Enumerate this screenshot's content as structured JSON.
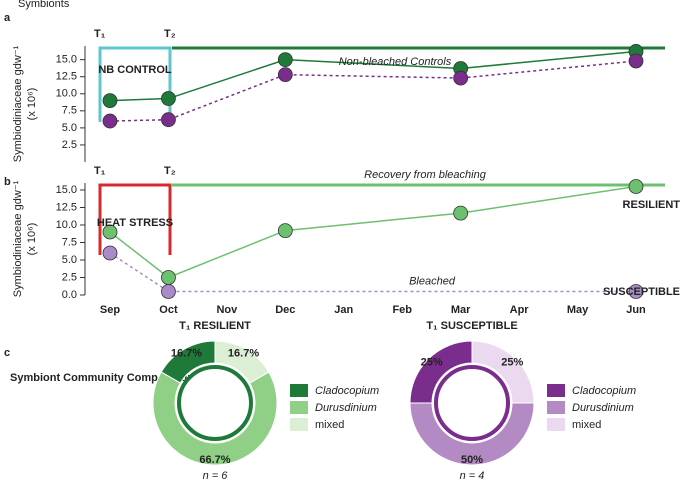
{
  "chart_data": [
    {
      "type": "line",
      "panel": "a",
      "ylim": [
        0,
        17
      ],
      "yticks": [
        {
          "value": 2.5,
          "label": "2.5"
        },
        {
          "value": 5,
          "label": "5.0"
        },
        {
          "value": 7.5,
          "label": "7.5"
        },
        {
          "value": 10,
          "label": "10.0"
        },
        {
          "value": 12.5,
          "label": "12.5"
        },
        {
          "value": 15,
          "label": "15.0"
        }
      ],
      "ylabel": "Symbiodiniaceae gdw⁻¹",
      "ylabel_unit": "(x 10⁶)",
      "series": [
        {
          "color": "#1f7a3a",
          "dashed": false,
          "x": [
            "Sep",
            "Oct",
            "Dec",
            "Mar",
            "Jun"
          ],
          "values": [
            9,
            9.3,
            15,
            13.7,
            16.2
          ]
        },
        {
          "color": "#7a2d8c",
          "dashed": true,
          "x": [
            "Sep",
            "Oct",
            "Dec",
            "Mar",
            "Jun"
          ],
          "values": [
            6,
            6.2,
            12.8,
            12.3,
            14.8
          ]
        }
      ],
      "annotations": {
        "symbionts": "Symbionts",
        "t1": "T₁",
        "t2": "T₂",
        "control": "NB CONTROL",
        "line": "Non-bleached Controls"
      }
    },
    {
      "type": "line",
      "panel": "b",
      "ylim": [
        0,
        16
      ],
      "categories": [
        "Sep",
        "Oct",
        "Nov",
        "Dec",
        "Jan",
        "Feb",
        "Mar",
        "Apr",
        "May",
        "Jun"
      ],
      "yticks": [
        {
          "value": 0,
          "label": "0.0"
        },
        {
          "value": 2.5,
          "label": "2.5"
        },
        {
          "value": 5,
          "label": "5.0"
        },
        {
          "value": 7.5,
          "label": "7.5"
        },
        {
          "value": 10,
          "label": "10.0"
        },
        {
          "value": 12.5,
          "label": "12.5"
        },
        {
          "value": 15,
          "label": "15.0"
        }
      ],
      "ylabel": "Symbiodiniaceae gdw⁻¹",
      "ylabel_unit": "(x 10⁶)",
      "series": [
        {
          "name": "RESILIENT",
          "color": "#6cc070",
          "dashed": false,
          "x": [
            "Sep",
            "Oct",
            "Dec",
            "Mar",
            "Jun"
          ],
          "values": [
            9,
            2.5,
            9.2,
            11.7,
            15.5
          ]
        },
        {
          "name": "SUSCEPTIBLE",
          "color": "#a98bc9",
          "dashed": true,
          "x": [
            "Sep",
            "Oct",
            "Jun"
          ],
          "values": [
            6,
            0.5,
            0.5
          ]
        }
      ],
      "annotations": {
        "t1": "T₁",
        "t2": "T₂",
        "stress": "HEAT STRESS",
        "recovery": "Recovery from bleaching",
        "bleached": "Bleached"
      }
    },
    {
      "type": "pie",
      "panel": "c",
      "title": "T₁ RESILIENT",
      "subtitle": "n = 6",
      "inset": "Symbiont Community Composition",
      "series": [
        {
          "name": "Cladocopium",
          "color": "#1f7a3a"
        },
        {
          "name": "Durusdinium",
          "color": "#8fcf86"
        },
        {
          "name": "mixed",
          "color": "#dcefd5"
        }
      ],
      "values": [
        16.7,
        66.7,
        16.7
      ],
      "value_labels": [
        "16.7%",
        "66.7%",
        "16.7%"
      ]
    },
    {
      "type": "pie",
      "panel": "",
      "title": "T₁ SUSCEPTIBLE",
      "subtitle": "n = 4",
      "series": [
        {
          "name": "Cladocopium",
          "color": "#7a2d8c"
        },
        {
          "name": "Durusdinium",
          "color": "#b48ac4"
        },
        {
          "name": "mixed",
          "color": "#ead9ef"
        }
      ],
      "values": [
        25,
        50,
        25
      ],
      "value_labels": [
        "25%",
        "50%",
        "25%"
      ]
    }
  ]
}
